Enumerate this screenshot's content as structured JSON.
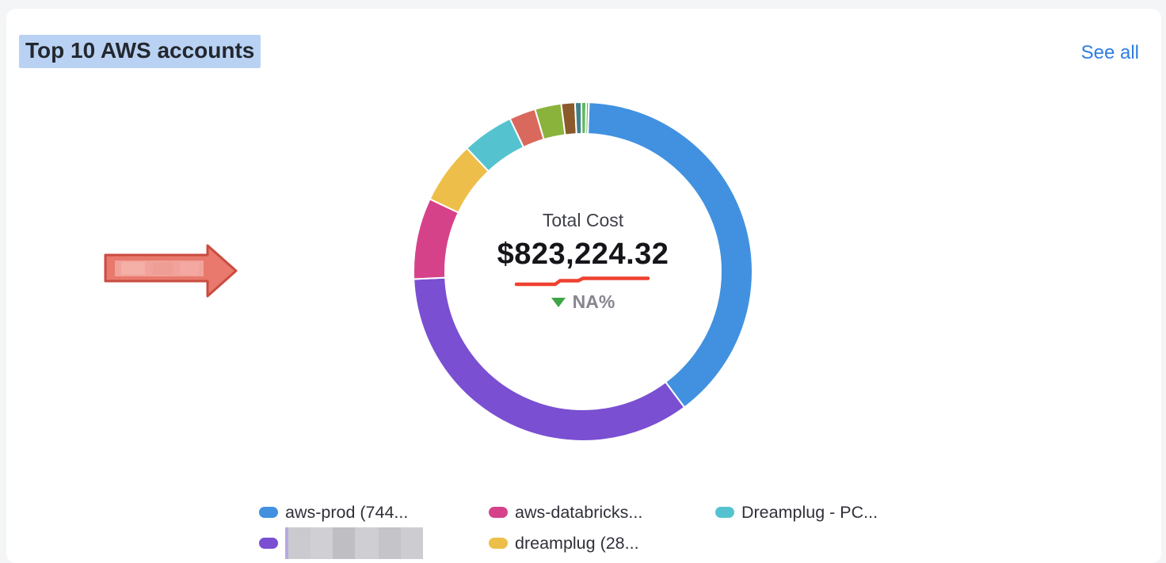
{
  "page": {
    "background": "#f4f5f7",
    "card_background": "#ffffff"
  },
  "header": {
    "title": "Top 10 AWS accounts",
    "title_highlight_color": "#b9d2f3",
    "see_all_label": "See all",
    "link_color": "#2e7de2"
  },
  "annotation_arrow": {
    "shape": "right-arrow",
    "fill": "#e8796c",
    "border": "#c94c40",
    "inner_redaction_color": "#f2a69e"
  },
  "donut": {
    "center_label": "Total Cost",
    "center_value": "$823,224.32",
    "delta_value": "NA%",
    "delta_direction": "down",
    "delta_triangle_color": "#3fa546",
    "delta_text_color": "#87858f",
    "scribble_color": "#ef4130"
  },
  "chart_data": {
    "type": "pie",
    "subtype": "donut",
    "title": "Top 10 AWS accounts",
    "total_label": "Total Cost",
    "total_value": "$823,224.32",
    "change_percent": "NA%",
    "start_angle_deg": 2,
    "legend_position": "bottom",
    "segments": [
      {
        "label": "aws-prod (744...",
        "percent": 39.0,
        "color": "#4191e0"
      },
      {
        "label": "",
        "redacted": true,
        "percent": 34.3,
        "color": "#7a4fd1"
      },
      {
        "label": "aws-databricks...",
        "percent": 7.7,
        "color": "#d6428a"
      },
      {
        "label": "dreamplug (28...",
        "percent": 5.9,
        "color": "#edbf4a"
      },
      {
        "label": "Dreamplug - PC...",
        "percent": 4.9,
        "color": "#55c3cf"
      },
      {
        "label": "",
        "percent": 2.5,
        "color": "#d9695c"
      },
      {
        "label": "",
        "percent": 2.5,
        "color": "#8ab33b"
      },
      {
        "label": "",
        "percent": 1.3,
        "color": "#8a5a2a"
      },
      {
        "label": "",
        "percent": 0.6,
        "color": "#40808a"
      },
      {
        "label": "",
        "percent": 0.45,
        "color": "#5cb85c"
      },
      {
        "label": "",
        "percent": 0.25,
        "color": "#69bd58"
      }
    ]
  },
  "legend": {
    "items": [
      {
        "label": "aws-prod (744...",
        "color": "#4191e0",
        "redacted": false
      },
      {
        "label": "",
        "color": "#7a4fd1",
        "redacted": true
      },
      {
        "label": "aws-databricks...",
        "color": "#d6428a",
        "redacted": false
      },
      {
        "label": "dreamplug (28...",
        "color": "#edbf4a",
        "redacted": false
      },
      {
        "label": "Dreamplug - PC...",
        "color": "#55c3cf",
        "redacted": false
      }
    ]
  }
}
